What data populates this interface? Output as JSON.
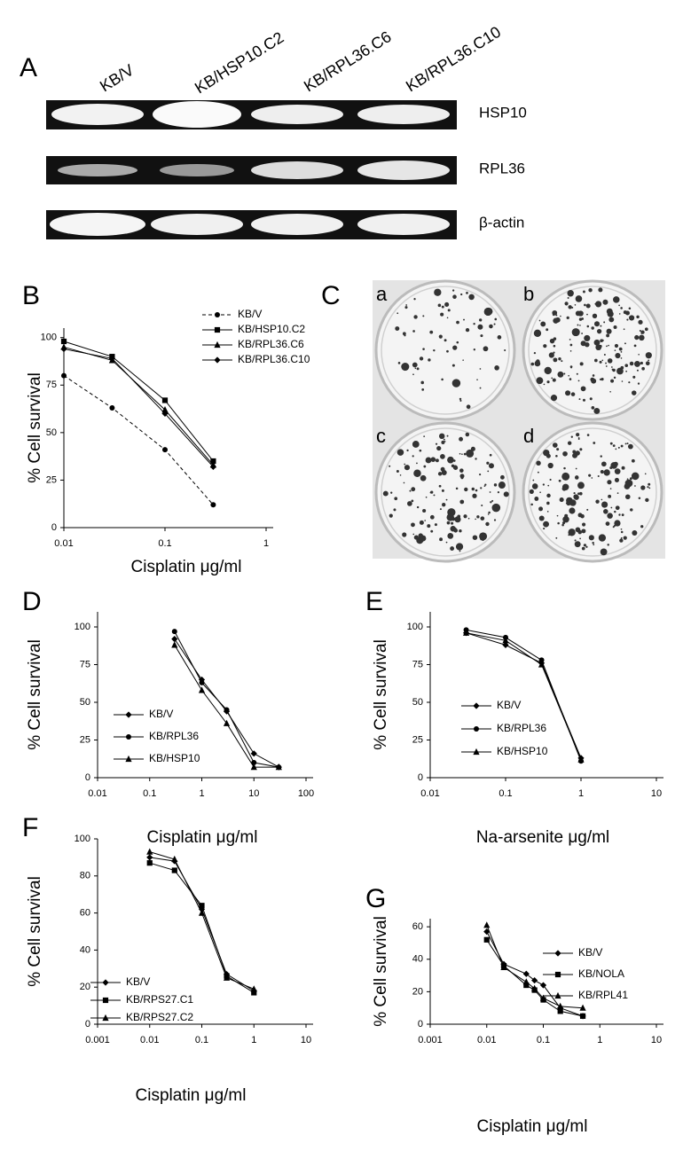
{
  "panel_labels": [
    "A",
    "B",
    "C",
    "D",
    "E",
    "F",
    "G"
  ],
  "blot": {
    "lanes": [
      "KB/V",
      "KB/HSP10.C2",
      "KB/RPL36.C6",
      "KB/RPL36.C10"
    ],
    "bands": [
      "HSP10",
      "RPL36",
      "β-actin"
    ]
  },
  "plates": {
    "labels": [
      "a",
      "b",
      "c",
      "d"
    ]
  },
  "chart_data": [
    {
      "type": "line",
      "xscale": "log",
      "x_label": "Cisplatin μg/ml",
      "y_label": "% Cell survival",
      "x": [
        0.01,
        0.03,
        0.1,
        0.3
      ],
      "xlim": [
        0.01,
        1
      ],
      "xticks": [
        0.01,
        0.1,
        1
      ],
      "ylim": [
        0,
        105
      ],
      "yticks": [
        0,
        25,
        50,
        75,
        100
      ],
      "series": [
        {
          "name": "KB/V",
          "color": "#000000",
          "marker": "circle",
          "dash": true,
          "values": [
            80,
            63,
            41,
            12
          ]
        },
        {
          "name": "KB/HSP10.C2",
          "color": "#000000",
          "marker": "square",
          "values": [
            98,
            90,
            67,
            35
          ]
        },
        {
          "name": "KB/RPL36.C6",
          "color": "#000000",
          "marker": "triangle",
          "values": [
            95,
            88,
            62,
            33
          ]
        },
        {
          "name": "KB/RPL36.C10",
          "color": "#000000",
          "marker": "diamond",
          "values": [
            94,
            89,
            60,
            32
          ]
        }
      ]
    },
    {
      "type": "line",
      "xscale": "log",
      "x_label": "Cisplatin μg/ml",
      "y_label": "% Cell survival",
      "x": [
        0.3,
        1,
        3,
        10,
        30
      ],
      "xlim": [
        0.01,
        100
      ],
      "xticks": [
        0.01,
        0.1,
        1,
        10,
        100
      ],
      "ylim": [
        0,
        110
      ],
      "yticks": [
        0,
        25,
        50,
        75,
        100
      ],
      "series": [
        {
          "name": "KB/V",
          "color": "#000000",
          "marker": "diamond",
          "values": [
            92,
            65,
            44,
            16,
            7
          ]
        },
        {
          "name": "KB/RPL36",
          "color": "#000000",
          "marker": "circle",
          "values": [
            97,
            63,
            45,
            10,
            7
          ]
        },
        {
          "name": "KB/HSP10",
          "color": "#000000",
          "marker": "triangle",
          "values": [
            88,
            58,
            36,
            7,
            7
          ]
        }
      ]
    },
    {
      "type": "line",
      "xscale": "log",
      "x_label": "Na-arsenite μg/ml",
      "y_label": "% Cell survival",
      "x": [
        0.03,
        0.1,
        0.3,
        1
      ],
      "xlim": [
        0.01,
        10
      ],
      "xticks": [
        0.01,
        0.1,
        1,
        10
      ],
      "ylim": [
        0,
        110
      ],
      "yticks": [
        0,
        25,
        50,
        75,
        100
      ],
      "series": [
        {
          "name": "KB/V",
          "color": "#000000",
          "marker": "diamond",
          "values": [
            96,
            88,
            76,
            13
          ]
        },
        {
          "name": "KB/RPL36",
          "color": "#000000",
          "marker": "circle",
          "values": [
            98,
            93,
            78,
            11
          ]
        },
        {
          "name": "KB/HSP10",
          "color": "#000000",
          "marker": "triangle",
          "values": [
            96,
            91,
            75,
            12
          ]
        }
      ]
    },
    {
      "type": "line",
      "xscale": "log",
      "x_label": "Cisplatin μg/ml",
      "y_label": "% Cell survival",
      "x": [
        0.01,
        0.03,
        0.1,
        0.3,
        1
      ],
      "xlim": [
        0.001,
        10
      ],
      "xticks": [
        0.001,
        0.01,
        0.1,
        1,
        10
      ],
      "ylim": [
        0,
        100
      ],
      "yticks": [
        0,
        20,
        40,
        60,
        80,
        100
      ],
      "series": [
        {
          "name": "KB/V",
          "color": "#000000",
          "marker": "diamond",
          "values": [
            90,
            88,
            62,
            27,
            18
          ]
        },
        {
          "name": "KB/RPS27.C1",
          "color": "#000000",
          "marker": "square",
          "values": [
            87,
            83,
            64,
            26,
            17
          ]
        },
        {
          "name": "KB/RPS27.C2",
          "color": "#000000",
          "marker": "triangle",
          "values": [
            93,
            89,
            60,
            25,
            19
          ]
        }
      ]
    },
    {
      "type": "line",
      "xscale": "log",
      "x_label": "Cisplatin μg/ml",
      "y_label": "% Cell survival",
      "x": [
        0.01,
        0.02,
        0.05,
        0.07,
        0.1,
        0.2,
        0.5
      ],
      "xlim": [
        0.001,
        10
      ],
      "xticks": [
        0.001,
        0.01,
        0.1,
        1,
        10
      ],
      "ylim": [
        0,
        65
      ],
      "yticks": [
        0,
        20,
        40,
        60
      ],
      "series": [
        {
          "name": "KB/V",
          "color": "#000000",
          "marker": "diamond",
          "values": [
            57,
            37,
            31,
            27,
            24,
            10,
            5
          ]
        },
        {
          "name": "KB/NOLA",
          "color": "#000000",
          "marker": "square",
          "values": [
            52,
            36,
            24,
            21,
            15,
            8,
            5
          ]
        },
        {
          "name": "KB/RPL41",
          "color": "#000000",
          "marker": "triangle",
          "values": [
            61,
            35,
            26,
            22,
            16,
            11,
            10
          ]
        }
      ]
    }
  ]
}
